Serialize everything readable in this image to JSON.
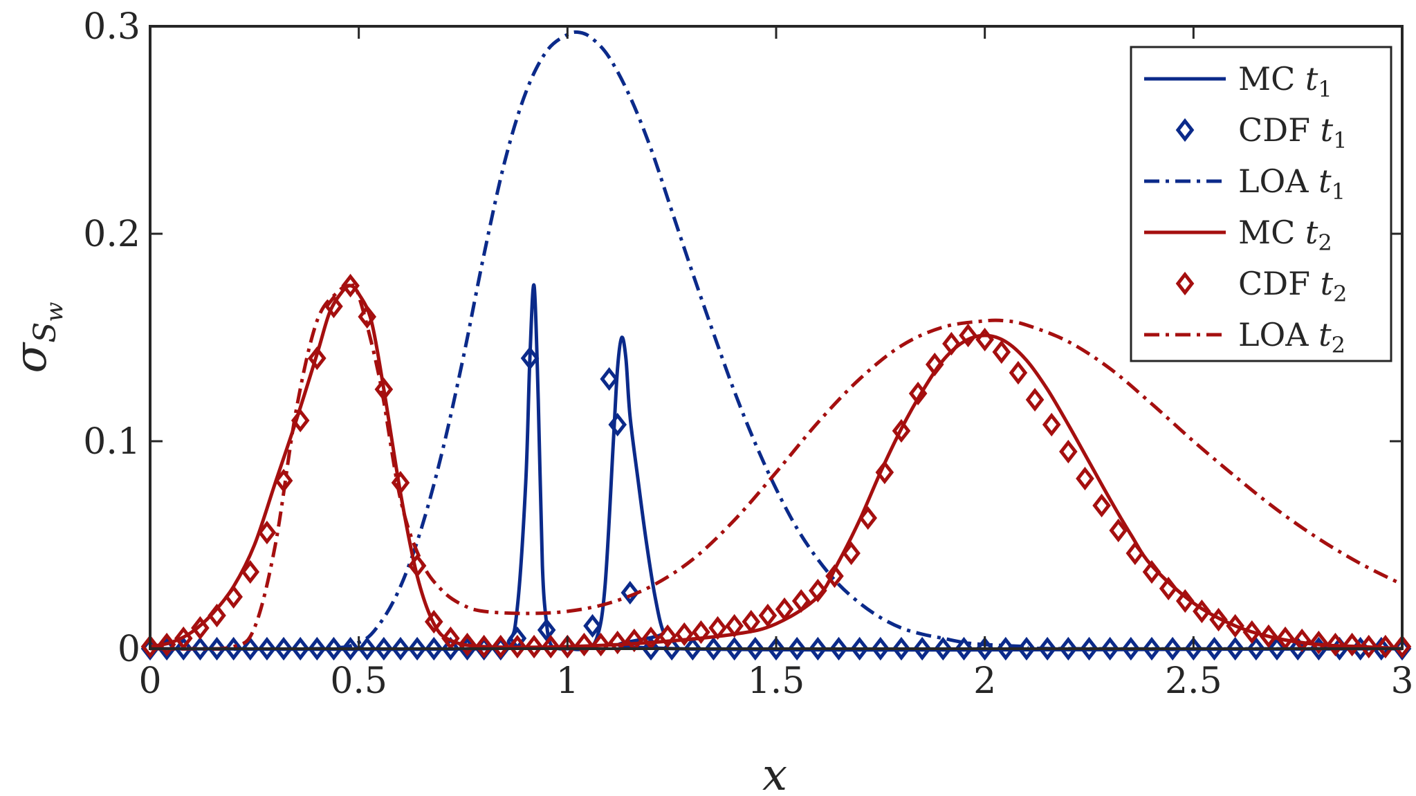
{
  "chart_data": {
    "type": "line",
    "title": "",
    "xlabel": "x",
    "ylabel": "σ",
    "ylabel_sub": "S",
    "ylabel_subsub": "w",
    "xlim": [
      0,
      3
    ],
    "ylim": [
      0,
      0.3
    ],
    "x_ticks": [
      0,
      0.5,
      1,
      1.5,
      2,
      2.5,
      3
    ],
    "x_tick_labels": [
      "0",
      "0.5",
      "1",
      "1.5",
      "2",
      "2.5",
      "3"
    ],
    "y_ticks": [
      0,
      0.1,
      0.2,
      0.3
    ],
    "y_tick_labels": [
      "0",
      "0.1",
      "0.2",
      "0.3"
    ],
    "grid": false,
    "legend_position": "top-right",
    "colors": {
      "blue": "#0b2a8a",
      "red": "#a50f0f",
      "axis": "#262626"
    },
    "series": [
      {
        "name": "MC",
        "name_sub": "t",
        "name_index": "1",
        "style": "solid",
        "color": "#0b2a8a",
        "x": [
          0,
          0.8,
          0.86,
          0.88,
          0.9,
          0.91,
          0.92,
          0.93,
          0.94,
          0.95,
          0.96,
          0.98,
          1.0,
          1.04,
          1.07,
          1.09,
          1.11,
          1.12,
          1.13,
          1.14,
          1.15,
          1.17,
          1.19,
          1.21,
          1.23,
          1.26,
          3
        ],
        "y": [
          0,
          0,
          0.004,
          0.02,
          0.08,
          0.14,
          0.175,
          0.12,
          0.04,
          0.012,
          0.002,
          0,
          0,
          0,
          0.005,
          0.03,
          0.1,
          0.135,
          0.15,
          0.14,
          0.112,
          0.08,
          0.05,
          0.025,
          0.008,
          0,
          0
        ]
      },
      {
        "name": "CDF",
        "name_sub": "t",
        "name_index": "1",
        "style": "marker",
        "marker": "diamond",
        "color": "#0b2a8a",
        "x": [
          0,
          0.04,
          0.08,
          0.12,
          0.16,
          0.2,
          0.24,
          0.28,
          0.32,
          0.36,
          0.4,
          0.44,
          0.48,
          0.52,
          0.56,
          0.6,
          0.64,
          0.68,
          0.72,
          0.76,
          0.8,
          0.84,
          0.88,
          0.91,
          0.95,
          1.0,
          1.06,
          1.1,
          1.12,
          1.15,
          1.2,
          1.25,
          1.3,
          1.35,
          1.4,
          1.45,
          1.5,
          1.55,
          1.6,
          1.65,
          1.7,
          1.75,
          1.8,
          1.85,
          1.9,
          1.95,
          2.0,
          2.05,
          2.1,
          2.15,
          2.2,
          2.25,
          2.3,
          2.35,
          2.4,
          2.45,
          2.5,
          2.55,
          2.6,
          2.65,
          2.7,
          2.75,
          2.8,
          2.85,
          2.9,
          2.95,
          3.0
        ],
        "y": [
          0,
          0,
          0,
          0,
          0,
          0,
          0,
          0,
          0,
          0,
          0,
          0,
          0,
          0,
          0,
          0,
          0,
          0,
          0,
          0,
          0,
          0,
          0.005,
          0.14,
          0.009,
          0.001,
          0.011,
          0.13,
          0.108,
          0.027,
          0,
          0,
          0,
          0,
          0,
          0,
          0,
          0,
          0,
          0,
          0,
          0,
          0,
          0,
          0,
          0,
          0,
          0,
          0,
          0,
          0,
          0,
          0,
          0,
          0,
          0,
          0,
          0,
          0,
          0,
          0,
          0,
          0,
          0,
          0,
          0,
          0
        ]
      },
      {
        "name": "LOA",
        "name_sub": "t",
        "name_index": "1",
        "style": "dashdot",
        "color": "#0b2a8a",
        "x": [
          0,
          0.4,
          0.5,
          0.55,
          0.6,
          0.65,
          0.7,
          0.75,
          0.8,
          0.85,
          0.9,
          0.95,
          1.0,
          1.03,
          1.06,
          1.1,
          1.15,
          1.2,
          1.25,
          1.3,
          1.35,
          1.4,
          1.45,
          1.5,
          1.55,
          1.6,
          1.65,
          1.7,
          1.75,
          1.8,
          1.85,
          1.9,
          1.95,
          2.0,
          2.1,
          2.2,
          3
        ],
        "y": [
          0,
          0,
          0.003,
          0.012,
          0.03,
          0.058,
          0.095,
          0.14,
          0.19,
          0.235,
          0.268,
          0.288,
          0.296,
          0.297,
          0.294,
          0.285,
          0.266,
          0.241,
          0.211,
          0.181,
          0.152,
          0.124,
          0.099,
          0.077,
          0.058,
          0.043,
          0.031,
          0.022,
          0.015,
          0.01,
          0.007,
          0.005,
          0.003,
          0.002,
          0.001,
          0,
          0
        ]
      },
      {
        "name": "MC",
        "name_sub": "t",
        "name_index": "2",
        "style": "solid",
        "color": "#a50f0f",
        "x": [
          0,
          0.05,
          0.1,
          0.15,
          0.2,
          0.25,
          0.3,
          0.35,
          0.4,
          0.43,
          0.46,
          0.48,
          0.5,
          0.53,
          0.56,
          0.6,
          0.64,
          0.68,
          0.72,
          0.8,
          1.0,
          1.2,
          1.4,
          1.5,
          1.6,
          1.65,
          1.7,
          1.75,
          1.8,
          1.85,
          1.9,
          1.95,
          2.0,
          2.05,
          2.1,
          2.15,
          2.2,
          2.25,
          2.3,
          2.35,
          2.4,
          2.5,
          2.6,
          2.7,
          2.8,
          2.9,
          3.0
        ],
        "y": [
          0.001,
          0.003,
          0.008,
          0.017,
          0.03,
          0.05,
          0.08,
          0.11,
          0.142,
          0.162,
          0.172,
          0.175,
          0.171,
          0.158,
          0.125,
          0.075,
          0.035,
          0.012,
          0.004,
          0.001,
          0.001,
          0.003,
          0.007,
          0.012,
          0.025,
          0.042,
          0.062,
          0.085,
          0.106,
          0.124,
          0.139,
          0.148,
          0.151,
          0.148,
          0.139,
          0.125,
          0.108,
          0.09,
          0.072,
          0.055,
          0.04,
          0.022,
          0.011,
          0.005,
          0.002,
          0.001,
          0
        ]
      },
      {
        "name": "CDF",
        "name_sub": "t",
        "name_index": "2",
        "style": "marker",
        "marker": "diamond",
        "color": "#a50f0f",
        "x": [
          0,
          0.04,
          0.08,
          0.12,
          0.16,
          0.2,
          0.24,
          0.28,
          0.32,
          0.36,
          0.4,
          0.44,
          0.48,
          0.52,
          0.56,
          0.6,
          0.64,
          0.68,
          0.72,
          0.76,
          0.8,
          0.84,
          0.88,
          0.92,
          0.96,
          1.0,
          1.04,
          1.08,
          1.12,
          1.16,
          1.2,
          1.24,
          1.28,
          1.32,
          1.36,
          1.4,
          1.44,
          1.48,
          1.52,
          1.56,
          1.6,
          1.64,
          1.68,
          1.72,
          1.76,
          1.8,
          1.84,
          1.88,
          1.92,
          1.96,
          2.0,
          2.04,
          2.08,
          2.12,
          2.16,
          2.2,
          2.24,
          2.28,
          2.32,
          2.36,
          2.4,
          2.44,
          2.48,
          2.52,
          2.56,
          2.6,
          2.64,
          2.68,
          2.72,
          2.76,
          2.8,
          2.84,
          2.88,
          2.92,
          2.96,
          3.0
        ],
        "y": [
          0.001,
          0.002,
          0.005,
          0.01,
          0.016,
          0.025,
          0.037,
          0.056,
          0.081,
          0.11,
          0.14,
          0.165,
          0.175,
          0.16,
          0.125,
          0.08,
          0.04,
          0.013,
          0.005,
          0.002,
          0.001,
          0.001,
          0.001,
          0.001,
          0.001,
          0.001,
          0.002,
          0.002,
          0.003,
          0.004,
          0.005,
          0.006,
          0.007,
          0.008,
          0.01,
          0.011,
          0.013,
          0.016,
          0.019,
          0.023,
          0.028,
          0.035,
          0.046,
          0.063,
          0.085,
          0.105,
          0.123,
          0.137,
          0.147,
          0.151,
          0.149,
          0.143,
          0.133,
          0.12,
          0.108,
          0.095,
          0.082,
          0.069,
          0.057,
          0.046,
          0.037,
          0.029,
          0.023,
          0.018,
          0.014,
          0.011,
          0.008,
          0.006,
          0.005,
          0.004,
          0.003,
          0.002,
          0.002,
          0.001,
          0.001,
          0.001
        ]
      },
      {
        "name": "LOA",
        "name_sub": "t",
        "name_index": "2",
        "style": "dashdot",
        "color": "#a50f0f",
        "x": [
          0,
          0.1,
          0.2,
          0.25,
          0.3,
          0.35,
          0.4,
          0.45,
          0.48,
          0.5,
          0.55,
          0.6,
          0.65,
          0.7,
          0.75,
          0.8,
          0.9,
          1.0,
          1.1,
          1.2,
          1.3,
          1.4,
          1.5,
          1.6,
          1.7,
          1.8,
          1.9,
          2.0,
          2.05,
          2.1,
          2.2,
          2.3,
          2.4,
          2.5,
          2.6,
          2.7,
          2.8,
          2.9,
          3.0
        ],
        "y": [
          0,
          0,
          0.001,
          0.01,
          0.05,
          0.115,
          0.158,
          0.172,
          0.175,
          0.17,
          0.13,
          0.072,
          0.042,
          0.028,
          0.021,
          0.018,
          0.017,
          0.018,
          0.022,
          0.03,
          0.043,
          0.062,
          0.085,
          0.109,
          0.13,
          0.146,
          0.155,
          0.158,
          0.158,
          0.156,
          0.148,
          0.135,
          0.118,
          0.1,
          0.083,
          0.067,
          0.053,
          0.041,
          0.031
        ]
      }
    ]
  }
}
